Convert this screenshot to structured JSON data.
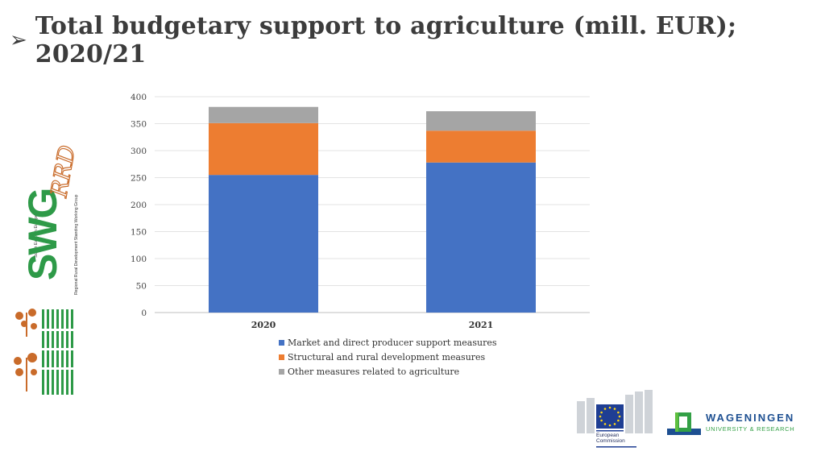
{
  "slide": {
    "title_bullet": "➢",
    "title": "Total budgetary support to agriculture (mill. EUR); 2020/21"
  },
  "chart_data": {
    "type": "bar",
    "stacked": true,
    "title": "",
    "xlabel": "",
    "ylabel": "",
    "categories": [
      "2020",
      "2021"
    ],
    "series": [
      {
        "name": "Market and direct producer support measures",
        "values": [
          255,
          278
        ],
        "color": "#4472c4"
      },
      {
        "name": "Structural and rural development measures",
        "values": [
          96,
          59
        ],
        "color": "#ed7d31"
      },
      {
        "name": "Other measures related to agriculture",
        "values": [
          30,
          36
        ],
        "color": "#a5a5a5"
      }
    ],
    "ylim": [
      0,
      400
    ],
    "yticks": [
      0,
      50,
      100,
      150,
      200,
      250,
      300,
      350,
      400
    ],
    "grid": true,
    "legend_position": "bottom"
  },
  "logos": {
    "swg": {
      "text_main": "SWG",
      "text_rrd": "RRD",
      "text_region": "South Eastern Europe",
      "text_group": "Regional Rural Development Standing Working Group"
    },
    "ec": {
      "caption_line1": "European",
      "caption_line2": "Commission"
    },
    "wur": {
      "name": "WAGENINGEN",
      "sub": "UNIVERSITY & RESEARCH"
    }
  }
}
